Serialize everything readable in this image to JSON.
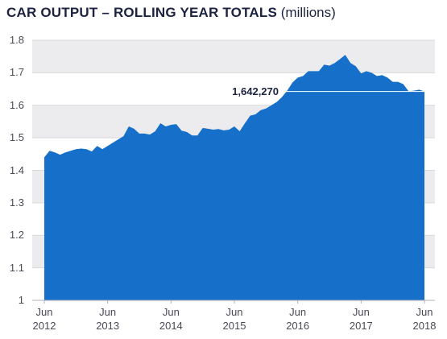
{
  "chart_data": {
    "type": "area",
    "title": "CAR OUTPUT – ROLLING YEAR TOTALS",
    "subtitle": "(millions)",
    "color": "#1670c9",
    "x": [
      "2012-06",
      "2012-07",
      "2012-08",
      "2012-09",
      "2012-10",
      "2012-11",
      "2012-12",
      "2013-01",
      "2013-02",
      "2013-03",
      "2013-04",
      "2013-05",
      "2013-06",
      "2013-07",
      "2013-08",
      "2013-09",
      "2013-10",
      "2013-11",
      "2013-12",
      "2014-01",
      "2014-02",
      "2014-03",
      "2014-04",
      "2014-05",
      "2014-06",
      "2014-07",
      "2014-08",
      "2014-09",
      "2014-10",
      "2014-11",
      "2014-12",
      "2015-01",
      "2015-02",
      "2015-03",
      "2015-04",
      "2015-05",
      "2015-06",
      "2015-07",
      "2015-08",
      "2015-09",
      "2015-10",
      "2015-11",
      "2015-12",
      "2016-01",
      "2016-02",
      "2016-03",
      "2016-04",
      "2016-05",
      "2016-06",
      "2016-07",
      "2016-08",
      "2016-09",
      "2016-10",
      "2016-11",
      "2016-12",
      "2017-01",
      "2017-02",
      "2017-03",
      "2017-04",
      "2017-05",
      "2017-06",
      "2017-07",
      "2017-08",
      "2017-09",
      "2017-10",
      "2017-11",
      "2017-12",
      "2018-01",
      "2018-02",
      "2018-03",
      "2018-04",
      "2018-05",
      "2018-06"
    ],
    "values": [
      1.44,
      1.46,
      1.455,
      1.448,
      1.455,
      1.46,
      1.465,
      1.467,
      1.465,
      1.458,
      1.475,
      1.465,
      1.475,
      1.485,
      1.495,
      1.505,
      1.535,
      1.528,
      1.513,
      1.513,
      1.51,
      1.52,
      1.545,
      1.535,
      1.54,
      1.542,
      1.522,
      1.518,
      1.507,
      1.507,
      1.53,
      1.528,
      1.525,
      1.527,
      1.523,
      1.525,
      1.535,
      1.52,
      1.545,
      1.568,
      1.572,
      1.585,
      1.59,
      1.6,
      1.61,
      1.625,
      1.645,
      1.67,
      1.685,
      1.69,
      1.705,
      1.705,
      1.705,
      1.725,
      1.722,
      1.73,
      1.742,
      1.755,
      1.73,
      1.72,
      1.698,
      1.705,
      1.7,
      1.69,
      1.693,
      1.685,
      1.672,
      1.672,
      1.665,
      1.643,
      1.645,
      1.648,
      1.64227
    ],
    "xlim": [
      "2012-06",
      "2018-06"
    ],
    "xticks": [
      {
        "value": "2012-06",
        "label": "Jun\n2012"
      },
      {
        "value": "2013-06",
        "label": "Jun\n2013"
      },
      {
        "value": "2014-06",
        "label": "Jun\n2014"
      },
      {
        "value": "2015-06",
        "label": "Jun\n2015"
      },
      {
        "value": "2016-06",
        "label": "Jun\n2016"
      },
      {
        "value": "2017-06",
        "label": "Jun\n2017"
      },
      {
        "value": "2018-06",
        "label": "Jun\n2018"
      }
    ],
    "ylim": [
      1,
      1.8
    ],
    "yticks": [
      1,
      1.1,
      1.2,
      1.3,
      1.4,
      1.5,
      1.6,
      1.7,
      1.8
    ],
    "annotation": {
      "text": "1,642,270",
      "y": 1.64227
    },
    "grid": true
  }
}
